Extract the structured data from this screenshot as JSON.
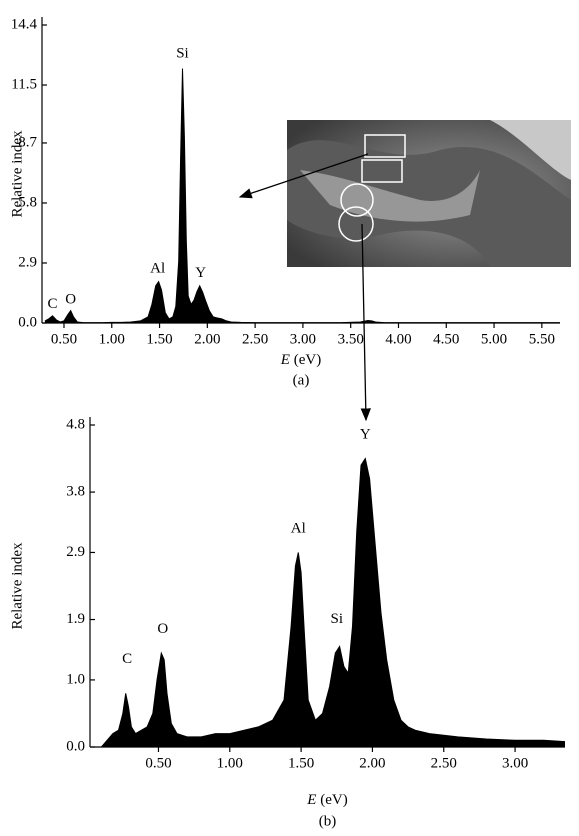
{
  "chart_data": [
    {
      "type": "area",
      "panel_label": "(a)",
      "ylabel": "Relative index",
      "xlabel_symbol": "E",
      "xlabel": "(eV)",
      "color": "#000000",
      "x": [
        0.3,
        0.34,
        0.38,
        0.42,
        0.46,
        0.5,
        0.54,
        0.57,
        0.6,
        0.64,
        0.7,
        0.8,
        0.9,
        1.0,
        1.1,
        1.2,
        1.3,
        1.38,
        1.42,
        1.46,
        1.49,
        1.52,
        1.56,
        1.6,
        1.64,
        1.67,
        1.7,
        1.72,
        1.74,
        1.76,
        1.78,
        1.8,
        1.83,
        1.86,
        1.89,
        1.92,
        1.95,
        1.98,
        2.02,
        2.06,
        2.1,
        2.15,
        2.2,
        2.25,
        2.35,
        2.5,
        2.8,
        3.1,
        3.4,
        3.6,
        3.68,
        3.72,
        3.76,
        3.85,
        4.2,
        4.8,
        5.4,
        5.69
      ],
      "values": [
        0.1,
        0.2,
        0.35,
        0.15,
        0.05,
        0.1,
        0.4,
        0.6,
        0.3,
        0.05,
        0.02,
        0.02,
        0.02,
        0.03,
        0.03,
        0.05,
        0.1,
        0.3,
        0.9,
        1.8,
        2.0,
        1.6,
        0.5,
        0.2,
        0.3,
        0.8,
        3.0,
        8.0,
        12.3,
        9.0,
        4.0,
        1.3,
        0.9,
        1.1,
        1.5,
        1.8,
        1.5,
        1.1,
        0.6,
        0.3,
        0.25,
        0.2,
        0.1,
        0.05,
        0.03,
        0.02,
        0.02,
        0.02,
        0.02,
        0.05,
        0.12,
        0.1,
        0.05,
        0.02,
        0.02,
        0.02,
        0.02,
        0.02
      ],
      "xlim": [
        0.27,
        5.69
      ],
      "xticks": [
        {
          "value": 0.5,
          "label": "0.50"
        },
        {
          "value": 1.0,
          "label": "1.00"
        },
        {
          "value": 1.5,
          "label": "1.50"
        },
        {
          "value": 2.0,
          "label": "2.00"
        },
        {
          "value": 2.5,
          "label": "2.50"
        },
        {
          "value": 3.0,
          "label": "3.00"
        },
        {
          "value": 3.5,
          "label": "3.50"
        },
        {
          "value": 4.0,
          "label": "4.00"
        },
        {
          "value": 4.5,
          "label": "4.50"
        },
        {
          "value": 5.0,
          "label": "5.00"
        },
        {
          "value": 5.5,
          "label": "5.50"
        }
      ],
      "ylim": [
        0,
        14.4
      ],
      "yticks": [
        {
          "value": 0,
          "label": "0.0"
        },
        2.9,
        5.8,
        8.7,
        11.5,
        14.4
      ],
      "annotations": [
        {
          "text": "C",
          "x": 0.38,
          "y": 0.9
        },
        {
          "text": "O",
          "x": 0.57,
          "y": 1.1
        },
        {
          "text": "Al",
          "x": 1.48,
          "y": 2.6
        },
        {
          "text": "Si",
          "x": 1.74,
          "y": 13.0
        },
        {
          "text": "Y",
          "x": 1.93,
          "y": 2.4
        }
      ]
    },
    {
      "type": "area",
      "panel_label": "(b)",
      "ylabel": "Relative index",
      "xlabel_symbol": "E",
      "xlabel": "(eV)",
      "color": "#000000",
      "x": [
        0.1,
        0.14,
        0.18,
        0.22,
        0.25,
        0.27,
        0.29,
        0.31,
        0.34,
        0.38,
        0.42,
        0.46,
        0.49,
        0.52,
        0.54,
        0.56,
        0.59,
        0.63,
        0.7,
        0.8,
        0.9,
        1.0,
        1.1,
        1.2,
        1.3,
        1.38,
        1.43,
        1.46,
        1.48,
        1.5,
        1.52,
        1.55,
        1.6,
        1.65,
        1.7,
        1.74,
        1.77,
        1.8,
        1.83,
        1.86,
        1.89,
        1.92,
        1.95,
        1.98,
        2.02,
        2.06,
        2.1,
        2.15,
        2.2,
        2.25,
        2.3,
        2.4,
        2.6,
        2.8,
        3.0,
        3.2,
        3.35
      ],
      "values": [
        0.0,
        0.1,
        0.2,
        0.25,
        0.5,
        0.8,
        0.6,
        0.3,
        0.2,
        0.25,
        0.3,
        0.5,
        1.0,
        1.4,
        1.3,
        0.8,
        0.35,
        0.2,
        0.15,
        0.15,
        0.2,
        0.2,
        0.25,
        0.3,
        0.4,
        0.7,
        1.8,
        2.7,
        2.9,
        2.6,
        1.8,
        0.7,
        0.4,
        0.5,
        0.9,
        1.4,
        1.5,
        1.2,
        1.1,
        1.8,
        3.2,
        4.2,
        4.3,
        4.0,
        3.0,
        2.0,
        1.3,
        0.7,
        0.4,
        0.3,
        0.25,
        0.2,
        0.15,
        0.12,
        0.1,
        0.1,
        0.08
      ],
      "xlim": [
        0.02,
        3.35
      ],
      "xticks": [
        {
          "value": 0.5,
          "label": "0.50"
        },
        {
          "value": 1.0,
          "label": "1.00"
        },
        {
          "value": 1.5,
          "label": "1.50"
        },
        {
          "value": 2.0,
          "label": "2.00"
        },
        {
          "value": 2.5,
          "label": "2.50"
        },
        {
          "value": 3.0,
          "label": "3.00"
        }
      ],
      "ylim": [
        0,
        4.8
      ],
      "yticks": [
        {
          "value": 0,
          "label": "0.0"
        },
        {
          "value": 1,
          "label": "1.0"
        },
        1.9,
        2.9,
        3.8,
        4.8
      ],
      "annotations": [
        {
          "text": "C",
          "x": 0.28,
          "y": 1.3
        },
        {
          "text": "O",
          "x": 0.53,
          "y": 1.75
        },
        {
          "text": "Al",
          "x": 1.48,
          "y": 3.25
        },
        {
          "text": "Si",
          "x": 1.75,
          "y": 1.9
        },
        {
          "text": "Y",
          "x": 1.95,
          "y": 4.65
        }
      ]
    }
  ]
}
